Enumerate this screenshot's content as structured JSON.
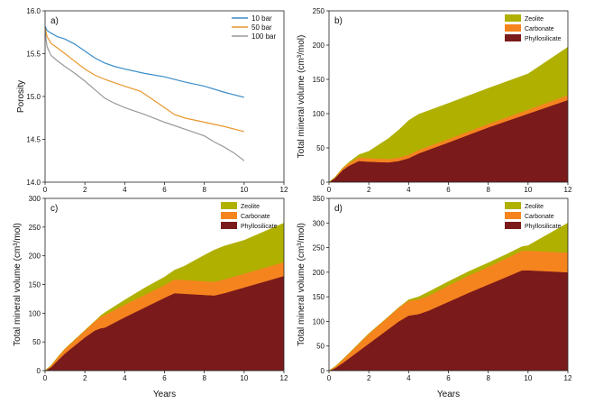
{
  "chart_data": [
    {
      "id": "a",
      "panel_label": "a)",
      "type": "line",
      "ylabel": "Porosity",
      "xlabel": "",
      "xlim": [
        0,
        12
      ],
      "ylim": [
        14.0,
        16.0
      ],
      "xticks": [
        0,
        2,
        4,
        6,
        8,
        10,
        12
      ],
      "yticks": [
        14.0,
        14.5,
        15.0,
        15.5,
        16.0
      ],
      "ytick_labels": [
        "14.0",
        "14.5",
        "15.0",
        "15.5",
        "16.0"
      ],
      "legend_position": "top-right",
      "series": [
        {
          "name": "10 bar",
          "color": "#3a8cc8",
          "x": [
            0,
            0.1,
            0.3,
            0.6,
            1.0,
            1.5,
            2.0,
            2.5,
            3.0,
            3.5,
            4.0,
            5.0,
            6.0,
            7.0,
            8.0,
            9.0,
            10.0
          ],
          "y": [
            15.82,
            15.77,
            15.74,
            15.7,
            15.67,
            15.61,
            15.53,
            15.45,
            15.39,
            15.35,
            15.32,
            15.27,
            15.23,
            15.17,
            15.12,
            15.05,
            14.99
          ]
        },
        {
          "name": "50 bar",
          "color": "#e8962d",
          "x": [
            0,
            0.1,
            0.3,
            0.6,
            1.0,
            1.5,
            2.0,
            2.5,
            3.0,
            3.5,
            4.0,
            4.8,
            5.5,
            6.0,
            6.5,
            7.0,
            8.0,
            9.0,
            10.0
          ],
          "y": [
            15.8,
            15.7,
            15.62,
            15.57,
            15.5,
            15.41,
            15.32,
            15.25,
            15.2,
            15.16,
            15.12,
            15.06,
            14.95,
            14.87,
            14.79,
            14.75,
            14.7,
            14.65,
            14.59
          ]
        },
        {
          "name": "100 bar",
          "color": "#999999",
          "x": [
            0,
            0.1,
            0.3,
            0.6,
            1.0,
            1.5,
            2.0,
            2.5,
            3.0,
            3.5,
            4.0,
            5.0,
            6.0,
            7.0,
            8.0,
            8.5,
            9.0,
            9.5,
            10.0
          ],
          "y": [
            15.76,
            15.58,
            15.48,
            15.42,
            15.35,
            15.27,
            15.18,
            15.08,
            14.98,
            14.92,
            14.87,
            14.79,
            14.7,
            14.62,
            14.54,
            14.47,
            14.41,
            14.34,
            14.25
          ]
        }
      ]
    },
    {
      "id": "b",
      "panel_label": "b)",
      "type": "area",
      "stacked": true,
      "ylabel": "Total mineral volume (cm³/mol)",
      "xlabel": "",
      "xlim": [
        0,
        12
      ],
      "ylim": [
        0,
        250
      ],
      "xticks": [
        0,
        2,
        4,
        6,
        8,
        10,
        12
      ],
      "yticks": [
        0,
        50,
        100,
        150,
        200,
        250
      ],
      "legend_position": "top-right",
      "x": [
        0,
        0.3,
        0.7,
        1.0,
        1.5,
        2.0,
        3.0,
        3.5,
        4.0,
        4.5,
        6.0,
        8.0,
        10.0,
        12.0
      ],
      "series": [
        {
          "name": "Phyllosilicate",
          "color": "#7b1a1a",
          "values": [
            0,
            6,
            18,
            24,
            31,
            30,
            29,
            31,
            35,
            42,
            58,
            80,
            100,
            120
          ]
        },
        {
          "name": "Carbonate",
          "color": "#f5841f",
          "values": [
            0,
            1,
            3,
            4,
            5,
            5,
            5,
            5,
            5,
            5,
            5,
            5,
            6,
            7
          ]
        },
        {
          "name": "Zeolite",
          "color": "#b0b000",
          "values": [
            0,
            0,
            0,
            1,
            4,
            10,
            30,
            40,
            50,
            52,
            52,
            52,
            52,
            70
          ]
        }
      ]
    },
    {
      "id": "c",
      "panel_label": "c)",
      "type": "area",
      "stacked": true,
      "ylabel": "Total mineral volume (cm³/mol)",
      "xlabel": "Years",
      "xlim": [
        0,
        12
      ],
      "ylim": [
        0,
        300
      ],
      "xticks": [
        0,
        2,
        4,
        6,
        8,
        10,
        12
      ],
      "yticks": [
        0,
        50,
        100,
        150,
        200,
        250,
        300
      ],
      "legend_position": "top-right",
      "x": [
        0,
        0.3,
        0.7,
        1.0,
        2.0,
        2.5,
        2.8,
        3.0,
        4.0,
        5.0,
        6.0,
        6.5,
        7.0,
        8.0,
        8.5,
        9.0,
        10.0,
        12.0
      ],
      "series": [
        {
          "name": "Phyllosilicate",
          "color": "#7b1a1a",
          "values": [
            0,
            6,
            20,
            30,
            58,
            70,
            74,
            75,
            93,
            110,
            127,
            135,
            134,
            132,
            131,
            135,
            145,
            165
          ]
        },
        {
          "name": "Carbonate",
          "color": "#f5841f",
          "values": [
            0,
            3,
            6,
            8,
            12,
            16,
            20,
            22,
            22,
            22,
            22,
            24,
            24,
            24,
            24,
            24,
            24,
            24
          ]
        },
        {
          "name": "Zeolite",
          "color": "#b0b000",
          "values": [
            0,
            0,
            0,
            0,
            0,
            0,
            2,
            4,
            8,
            12,
            14,
            16,
            24,
            45,
            55,
            58,
            58,
            68
          ]
        }
      ]
    },
    {
      "id": "d",
      "panel_label": "d)",
      "type": "area",
      "stacked": true,
      "ylabel": "Total mineral volume (cm³/mol)",
      "xlabel": "Years",
      "xlim": [
        0,
        12
      ],
      "ylim": [
        0,
        350
      ],
      "xticks": [
        0,
        2,
        4,
        6,
        8,
        10,
        12
      ],
      "yticks": [
        0,
        50,
        100,
        150,
        200,
        250,
        300,
        350
      ],
      "legend_position": "top-right",
      "x": [
        0,
        0.3,
        0.7,
        1.0,
        2.0,
        3.0,
        3.5,
        4.0,
        4.5,
        5.0,
        6.0,
        7.0,
        8.0,
        9.0,
        9.7,
        10.0,
        11.0,
        12.0
      ],
      "series": [
        {
          "name": "Phyllosilicate",
          "color": "#7b1a1a",
          "values": [
            0,
            5,
            16,
            25,
            55,
            85,
            100,
            112,
            115,
            122,
            140,
            158,
            175,
            192,
            204,
            204,
            202,
            200
          ]
        },
        {
          "name": "Carbonate",
          "color": "#f5841f",
          "values": [
            0,
            3,
            7,
            10,
            20,
            25,
            28,
            30,
            30,
            30,
            33,
            35,
            36,
            38,
            40,
            40,
            40,
            40
          ]
        },
        {
          "name": "Zeolite",
          "color": "#b0b000",
          "values": [
            0,
            0,
            0,
            0,
            0,
            0,
            0,
            2,
            5,
            8,
            8,
            8,
            8,
            8,
            8,
            10,
            35,
            60
          ]
        }
      ]
    }
  ]
}
